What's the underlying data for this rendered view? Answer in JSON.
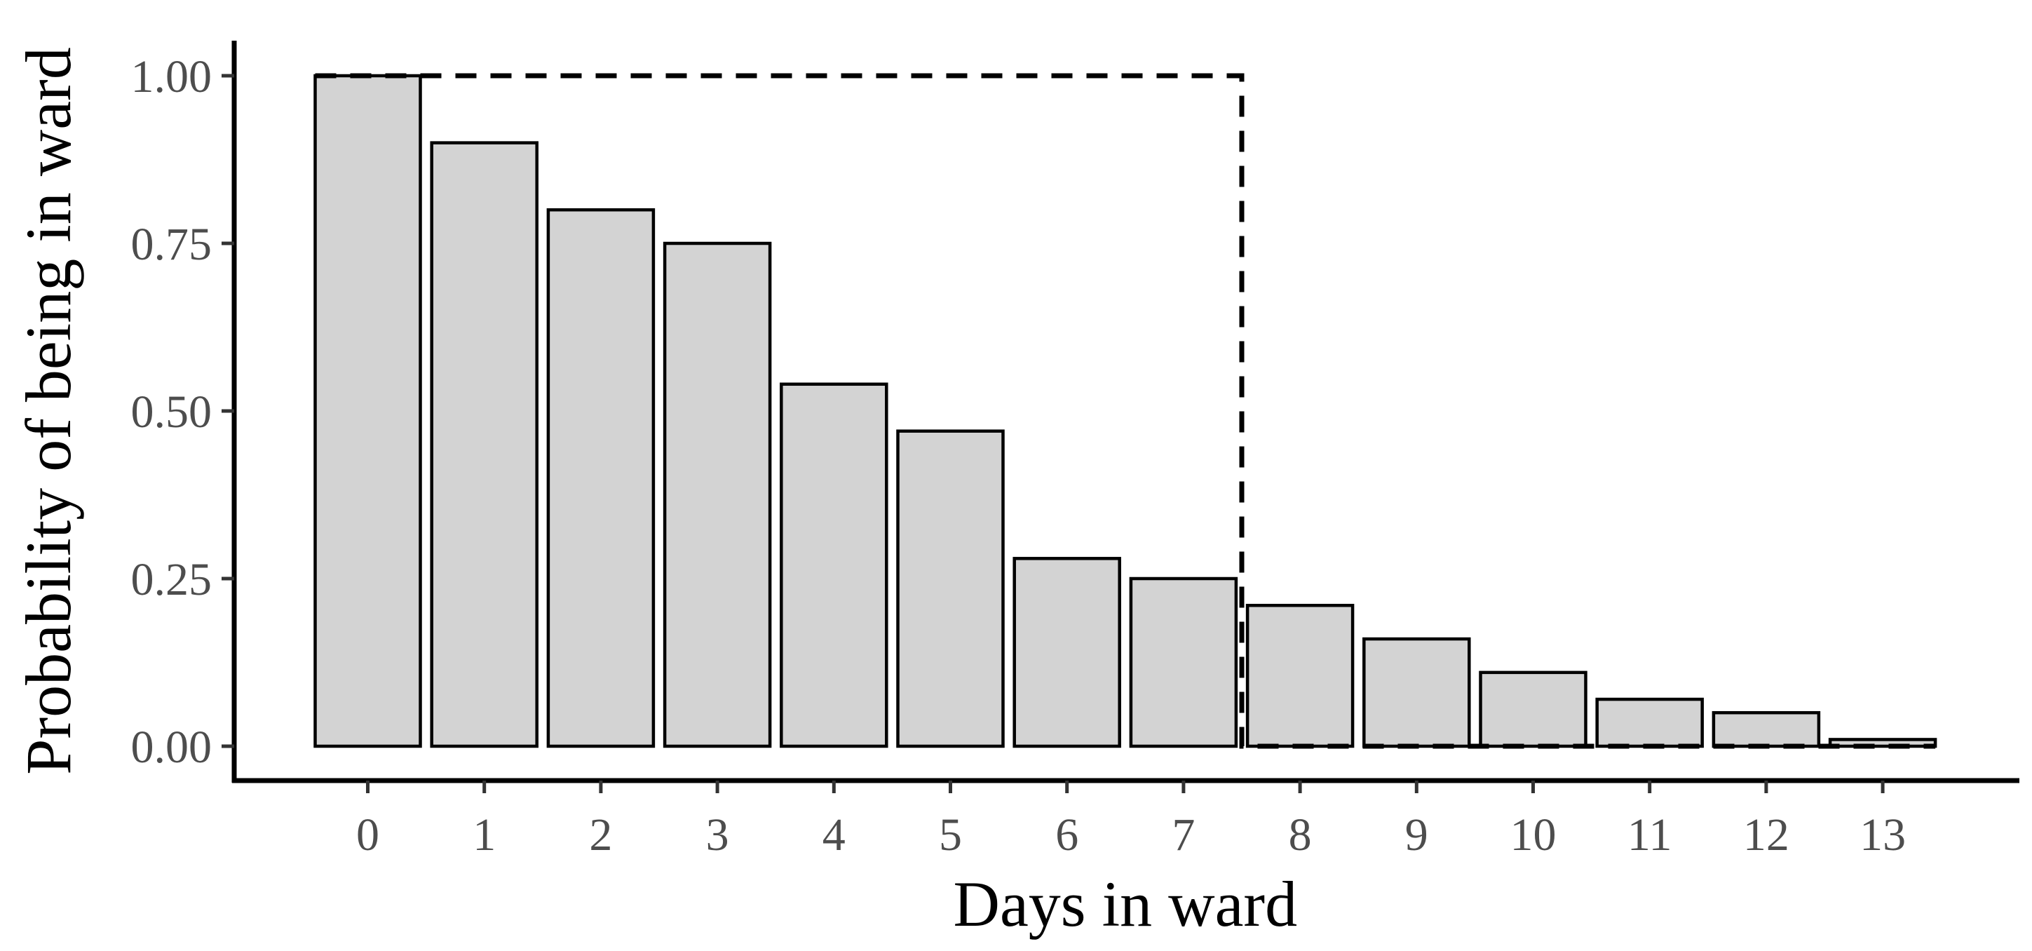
{
  "colors": {
    "bar_fill": "#d3d3d3",
    "bar_stroke": "#000000",
    "axis": "#000000",
    "tick_text": "#4d4d4d",
    "reference_line": "#000000"
  },
  "chart_data": {
    "type": "bar",
    "title": "",
    "xlabel": "Days in ward",
    "ylabel": "Probability of being in ward",
    "categories": [
      "0",
      "1",
      "2",
      "3",
      "4",
      "5",
      "6",
      "7",
      "8",
      "9",
      "10",
      "11",
      "12",
      "13"
    ],
    "series": [
      {
        "values": [
          1.0,
          0.9,
          0.8,
          0.75,
          0.54,
          0.47,
          0.28,
          0.25,
          0.21,
          0.16,
          0.11,
          0.07,
          0.05,
          0.01
        ]
      }
    ],
    "y_ticks": [
      "0.00",
      "0.25",
      "0.50",
      "0.75",
      "1.00"
    ],
    "ylim": [
      0,
      1
    ],
    "grid": false,
    "legend": "none",
    "reference_line": {
      "style": "dashed",
      "description": "step function",
      "value_before_step": 1.0,
      "value_after_step": 0.0,
      "step_between_categories": [
        "7",
        "8"
      ]
    }
  }
}
